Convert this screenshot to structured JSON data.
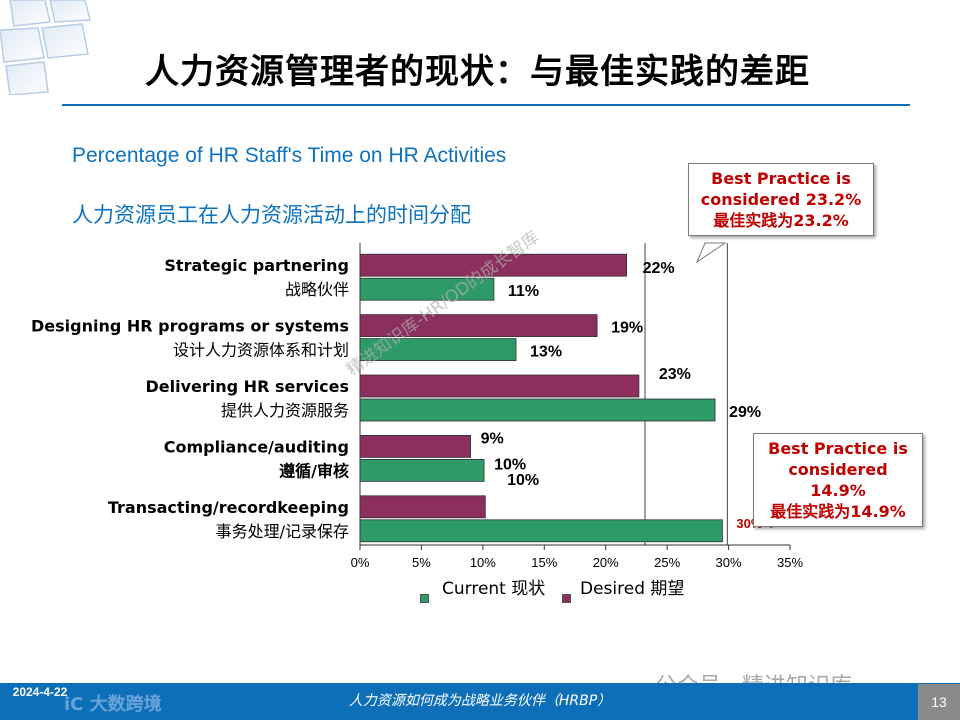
{
  "slide": {
    "title": "人力资源管理者的现状：与最佳实践的差距",
    "subtitle_en": "Percentage of HR Staff's Time on HR Activities",
    "subtitle_cn": "人力资源员工在人力资源活动上的时间分配",
    "page_number": "13",
    "footer_text": "人力资源如何成为战略业务伙伴（HRBP）",
    "footer_date": "2024-4-22",
    "footer_logo": "iC 大数跨境",
    "watermark_account": "公众号 · 精进知识库",
    "watermark_diagonal": "精进知识库-HR/OD的成长智库"
  },
  "callouts": [
    {
      "line1": "Best Practice is",
      "line2": "considered 23.2%",
      "line3": "最佳实践为23.2%"
    },
    {
      "line1": "Best Practice is",
      "line2": "considered 14.9%",
      "line3": "最佳实践为14.9%"
    }
  ],
  "legend": {
    "current_label": "Current  现状",
    "desired_label": "Desired  期望"
  },
  "colors": {
    "current": "#2e9a68",
    "desired": "#8b2f5f",
    "accent_blue": "#0e72bf",
    "callout_red": "#c00000"
  },
  "chart_data": {
    "type": "bar",
    "orientation": "horizontal",
    "xlim": [
      0,
      35
    ],
    "x_ticks": [
      "0%",
      "5%",
      "10%",
      "15%",
      "20%",
      "25%",
      "30%",
      "35%"
    ],
    "categories": [
      {
        "en": "Strategic partnering",
        "cn": "战略伙伴"
      },
      {
        "en": "Designing HR programs or systems",
        "cn": "设计人力资源体系和计划"
      },
      {
        "en": "Delivering HR services",
        "cn": "提供人力资源服务"
      },
      {
        "en": "Compliance/auditing",
        "cn": "遵循/审核"
      },
      {
        "en": "Transacting/recordkeeping",
        "cn": "事务处理/记录保存"
      }
    ],
    "series": [
      {
        "name": "Desired",
        "values": [
          21.7,
          19.3,
          22.7,
          9.0,
          10.2
        ],
        "labels": [
          "22%",
          "19%",
          "23%",
          "9%",
          ""
        ]
      },
      {
        "name": "Current",
        "values": [
          10.9,
          12.7,
          28.9,
          10.1,
          29.5
        ],
        "labels": [
          "11%",
          "13%",
          "29%",
          "10%",
          "30%"
        ]
      }
    ],
    "extra_labels": [
      "10%"
    ],
    "reference_lines": [
      23.2,
      29.9
    ],
    "grid": false
  }
}
